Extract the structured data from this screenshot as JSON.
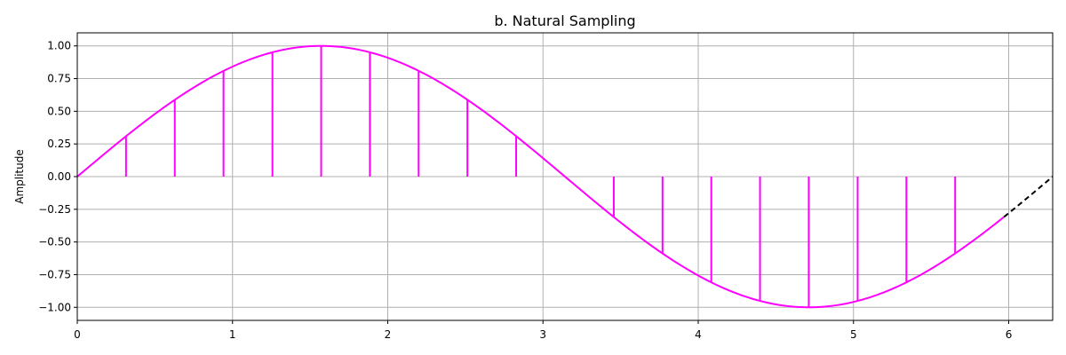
{
  "chart_data": {
    "type": "line",
    "title": "b. Natural Sampling",
    "xlabel": "",
    "ylabel": "Amplitude",
    "xlim": [
      0,
      6.2832
    ],
    "ylim": [
      -1.1,
      1.1
    ],
    "grid": true,
    "x_ticks": [
      0,
      1,
      2,
      3,
      4,
      5,
      6
    ],
    "x_tick_labels": [
      "0",
      "1",
      "2",
      "3",
      "4",
      "5",
      "6"
    ],
    "y_ticks": [
      1.0,
      0.75,
      0.5,
      0.25,
      0.0,
      -0.25,
      -0.5,
      -0.75,
      -1.0
    ],
    "y_tick_labels": [
      "1.00",
      "0.75",
      "0.50",
      "0.25",
      "0.00",
      "−0.25",
      "−0.50",
      "−0.75",
      "−1.00"
    ],
    "series": [
      {
        "kind": "curve",
        "function": "sin",
        "x_range": [
          0,
          5.97
        ],
        "color": "#ff00ff",
        "style": "solid"
      },
      {
        "kind": "curve",
        "function": "sin",
        "x_range": [
          5.97,
          6.2832
        ],
        "color": "#000000",
        "style": "dashed"
      },
      {
        "kind": "samples",
        "color": "#ff00ff",
        "x": [
          0.314,
          0.628,
          0.942,
          1.257,
          1.571,
          1.885,
          2.199,
          2.513,
          2.827,
          3.456,
          3.77,
          4.084,
          4.398,
          4.712,
          5.027,
          5.341,
          5.655
        ],
        "y": [
          0.309,
          0.588,
          0.809,
          0.951,
          1.0,
          0.951,
          0.809,
          0.588,
          0.309,
          -0.309,
          -0.588,
          -0.809,
          -0.951,
          -1.0,
          -0.951,
          -0.809,
          -0.588
        ]
      }
    ]
  }
}
